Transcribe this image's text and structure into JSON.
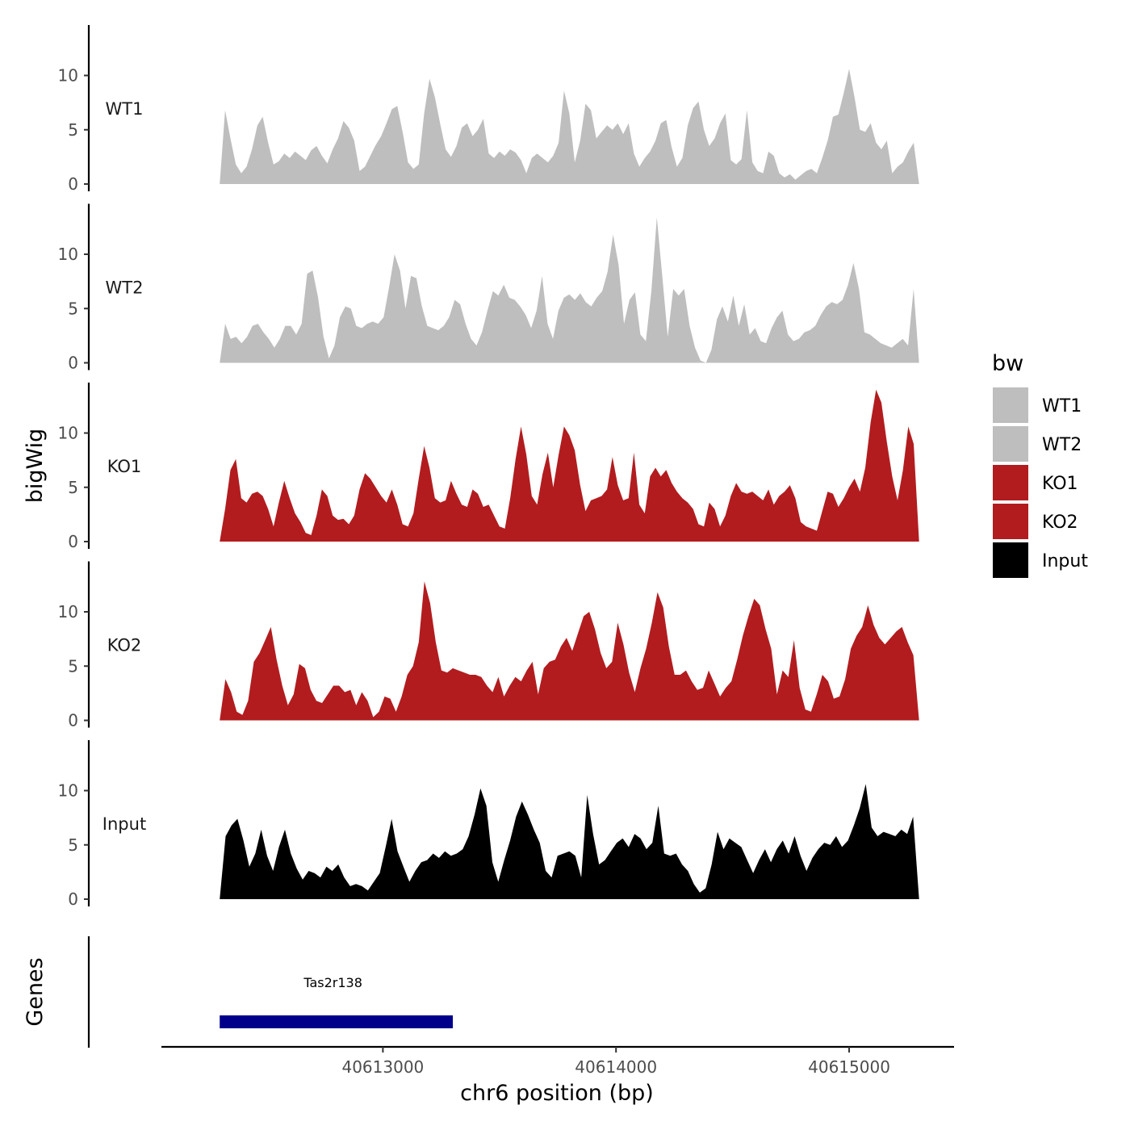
{
  "chart_data": {
    "type": "area",
    "title": "",
    "ylabel": "bigWig",
    "xlabel": "chr6 position (bp)",
    "x_range": [
      40612300,
      40615300
    ],
    "xlim": [
      40612050,
      40615450
    ],
    "ylim": [
      0,
      14.5
    ],
    "y_ticks": [
      0,
      5,
      10
    ],
    "x_ticks": [
      40613000,
      40614000,
      40615000
    ],
    "x_tick_labels": [
      "40613000",
      "40614000",
      "40615000"
    ],
    "colors": {
      "WT1": "#bebebe",
      "WT2": "#bebebe",
      "KO1": "#b21c1f",
      "KO2": "#b21c1f",
      "Input": "#000000"
    },
    "legend": {
      "title": "bw",
      "position": "right",
      "entries": [
        "WT1",
        "WT2",
        "KO1",
        "KO2",
        "Input"
      ]
    },
    "series": [
      {
        "name": "WT1",
        "x_start": 40612300,
        "x_end": 40615300,
        "values": [
          0,
          6.8,
          4.2,
          1.8,
          1.0,
          1.6,
          3.2,
          5.4,
          6.2,
          3.8,
          1.8,
          2.1,
          2.8,
          2.4,
          3.0,
          2.6,
          2.2,
          3.1,
          3.5,
          2.6,
          1.9,
          3.2,
          4.2,
          5.8,
          5.2,
          4.0,
          1.2,
          1.6,
          2.6,
          3.6,
          4.4,
          5.6,
          6.9,
          7.2,
          4.8,
          2.0,
          1.4,
          1.8,
          6.5,
          9.7,
          8.0,
          5.5,
          3.2,
          2.5,
          3.5,
          5.2,
          5.6,
          4.4,
          5.0,
          6.0,
          2.8,
          2.4,
          3.0,
          2.6,
          3.2,
          2.9,
          2.2,
          1.0,
          2.4,
          2.8,
          2.4,
          2.0,
          2.6,
          3.8,
          8.6,
          6.5,
          2.0,
          4.0,
          7.4,
          6.8,
          4.2,
          4.8,
          5.4,
          5.0,
          5.6,
          4.6,
          5.6,
          2.8,
          1.6,
          2.4,
          3.0,
          4.0,
          5.6,
          5.9,
          3.4,
          1.6,
          2.4,
          5.4,
          7.0,
          7.6,
          5.0,
          3.5,
          4.2,
          5.6,
          6.5,
          2.2,
          1.8,
          2.3,
          6.8,
          2.0,
          1.2,
          1.0,
          3.0,
          2.6,
          1.0,
          0.6,
          0.9,
          0.4,
          0.8,
          1.2,
          1.4,
          1.0,
          2.4,
          4.0,
          6.2,
          6.4,
          8.4,
          10.6,
          8.0,
          5.0,
          4.8,
          5.6,
          3.8,
          3.2,
          4.0,
          1.0,
          1.6,
          2.0,
          3.0,
          3.8,
          0
        ],
        "series_label": "WT1"
      },
      {
        "name": "WT2",
        "x_start": 40612300,
        "x_end": 40615300,
        "values": [
          0,
          3.6,
          2.2,
          2.4,
          1.8,
          2.4,
          3.4,
          3.6,
          2.8,
          2.2,
          1.4,
          2.2,
          3.4,
          3.4,
          2.6,
          3.6,
          8.2,
          8.5,
          6.0,
          2.4,
          0.4,
          1.6,
          4.2,
          5.2,
          5.0,
          3.4,
          3.2,
          3.6,
          3.8,
          3.6,
          4.2,
          7.0,
          10.0,
          8.5,
          5.0,
          8.0,
          7.8,
          5.2,
          3.4,
          3.2,
          3.0,
          3.4,
          4.2,
          5.8,
          5.4,
          3.6,
          2.2,
          1.6,
          2.8,
          4.8,
          6.6,
          6.2,
          7.2,
          6.0,
          5.8,
          5.2,
          4.4,
          3.2,
          4.8,
          8.0,
          3.6,
          2.2,
          4.8,
          6.0,
          6.3,
          5.8,
          6.4,
          5.6,
          5.2,
          6.0,
          6.6,
          8.4,
          11.8,
          9.0,
          3.6,
          5.8,
          6.5,
          2.6,
          2.0,
          6.6,
          13.4,
          8.0,
          2.4,
          6.8,
          6.2,
          6.8,
          3.4,
          1.4,
          0.2,
          0,
          1.2,
          4.0,
          5.2,
          3.8,
          6.2,
          3.4,
          5.4,
          2.6,
          3.2,
          2.0,
          1.8,
          3.2,
          4.2,
          4.8,
          2.6,
          2.0,
          2.2,
          2.8,
          3.0,
          3.4,
          4.4,
          5.2,
          5.6,
          5.4,
          5.8,
          7.2,
          9.2,
          6.8,
          2.8,
          2.6,
          2.2,
          1.8,
          1.6,
          1.4,
          1.8,
          2.2,
          1.6,
          6.8,
          0
        ],
        "series_label": "WT2"
      },
      {
        "name": "KO1",
        "x_start": 40612300,
        "x_end": 40615300,
        "values": [
          0,
          3.0,
          6.6,
          7.6,
          4.0,
          3.6,
          4.4,
          4.6,
          4.2,
          3.0,
          1.4,
          3.6,
          5.6,
          4.0,
          2.6,
          1.8,
          0.8,
          0.6,
          2.4,
          4.8,
          4.2,
          2.4,
          2.0,
          2.1,
          1.6,
          2.4,
          4.8,
          6.3,
          5.8,
          5.0,
          4.2,
          3.6,
          4.8,
          3.4,
          1.6,
          1.4,
          2.6,
          5.8,
          8.8,
          6.8,
          4.0,
          3.6,
          3.8,
          5.6,
          4.4,
          3.4,
          3.2,
          4.8,
          4.4,
          3.2,
          3.4,
          2.4,
          1.4,
          1.2,
          4.0,
          7.6,
          10.6,
          8.0,
          4.2,
          3.4,
          6.2,
          8.2,
          5.0,
          8.0,
          10.6,
          9.8,
          8.4,
          5.2,
          2.8,
          3.8,
          4.0,
          4.2,
          4.8,
          7.8,
          5.2,
          3.8,
          4.0,
          8.2,
          3.4,
          2.6,
          6.0,
          6.8,
          6.0,
          6.6,
          5.4,
          4.6,
          4.0,
          3.6,
          3.0,
          1.6,
          1.4,
          3.6,
          3.0,
          1.4,
          2.4,
          4.2,
          5.4,
          4.6,
          4.4,
          4.6,
          4.2,
          3.8,
          4.8,
          3.4,
          4.2,
          4.6,
          5.2,
          4.0,
          1.8,
          1.4,
          1.2,
          1.0,
          2.8,
          4.6,
          4.4,
          3.2,
          4.0,
          5.0,
          5.8,
          4.6,
          6.8,
          11.0,
          14.0,
          12.8,
          9.2,
          6.0,
          3.8,
          6.6,
          10.6,
          9.0,
          0
        ],
        "series_label": "KO1"
      },
      {
        "name": "KO2",
        "x_start": 40612300,
        "x_end": 40615300,
        "values": [
          0,
          3.8,
          2.6,
          0.8,
          0.5,
          1.8,
          5.4,
          6.2,
          7.4,
          8.6,
          5.6,
          3.2,
          1.4,
          2.4,
          5.2,
          4.8,
          2.8,
          1.8,
          1.6,
          2.4,
          3.2,
          3.2,
          2.6,
          2.8,
          1.4,
          2.6,
          1.8,
          0.3,
          0.8,
          2.2,
          2.0,
          0.8,
          2.2,
          4.2,
          5.0,
          7.2,
          12.8,
          10.8,
          7.2,
          4.6,
          4.4,
          4.8,
          4.6,
          4.4,
          4.2,
          4.2,
          4.0,
          3.2,
          2.6,
          4.0,
          2.2,
          3.2,
          4.0,
          3.6,
          4.6,
          5.4,
          2.4,
          4.8,
          5.4,
          5.6,
          6.8,
          7.6,
          6.4,
          8.0,
          9.6,
          10.0,
          8.4,
          6.2,
          4.8,
          5.4,
          9.0,
          7.0,
          4.4,
          2.6,
          4.8,
          6.6,
          9.0,
          11.8,
          10.4,
          6.8,
          4.2,
          4.2,
          4.6,
          3.6,
          2.8,
          3.0,
          4.6,
          3.4,
          2.2,
          3.0,
          3.6,
          5.6,
          7.8,
          9.6,
          11.2,
          10.6,
          8.4,
          6.6,
          2.4,
          4.6,
          4.0,
          7.4,
          3.0,
          1.0,
          0.8,
          2.4,
          4.2,
          3.6,
          2.0,
          2.2,
          3.8,
          6.6,
          7.8,
          8.6,
          10.6,
          8.8,
          7.6,
          7.0,
          7.6,
          8.2,
          8.6,
          7.2,
          6.0,
          0
        ],
        "series_label": "KO2"
      },
      {
        "name": "Input",
        "x_start": 40612300,
        "x_end": 40615300,
        "values": [
          0,
          5.8,
          6.8,
          7.4,
          5.4,
          3.0,
          4.2,
          6.4,
          4.0,
          2.6,
          4.8,
          6.4,
          4.2,
          2.8,
          1.8,
          2.6,
          2.4,
          2.0,
          3.0,
          2.6,
          3.2,
          2.0,
          1.2,
          1.4,
          1.2,
          0.8,
          1.6,
          2.4,
          4.8,
          7.4,
          4.4,
          3.0,
          1.6,
          2.6,
          3.4,
          3.6,
          4.2,
          3.8,
          4.4,
          4.0,
          4.2,
          4.6,
          5.8,
          7.8,
          10.2,
          8.6,
          3.4,
          1.6,
          3.6,
          5.4,
          7.6,
          9.0,
          7.8,
          6.4,
          5.2,
          2.6,
          2.0,
          4.0,
          4.2,
          4.4,
          4.0,
          2.0,
          9.6,
          6.0,
          3.2,
          3.6,
          4.4,
          5.2,
          5.6,
          4.8,
          6.0,
          5.6,
          4.6,
          5.2,
          8.6,
          4.2,
          4.0,
          4.2,
          3.2,
          2.6,
          1.4,
          0.6,
          1.0,
          3.2,
          6.2,
          4.6,
          5.6,
          5.2,
          4.8,
          3.6,
          2.4,
          3.6,
          4.6,
          3.4,
          4.6,
          5.4,
          4.2,
          5.8,
          4.0,
          2.6,
          3.8,
          4.6,
          5.2,
          5.0,
          5.8,
          4.8,
          5.4,
          6.8,
          8.4,
          10.6,
          6.6,
          5.8,
          6.2,
          6.0,
          5.8,
          6.4,
          6.0,
          7.6,
          0
        ],
        "series_label": "Input"
      }
    ],
    "genes": [
      {
        "name": "Tas2r138",
        "start": 40612300,
        "end": 40613300,
        "color": "#00008b"
      }
    ]
  }
}
